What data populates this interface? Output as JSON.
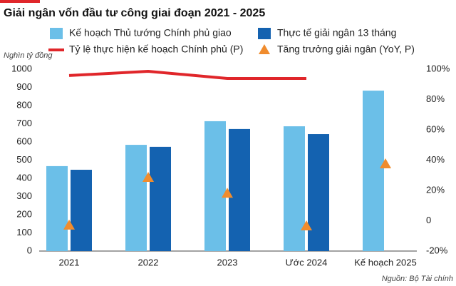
{
  "chart_data": {
    "type": "bar",
    "title": "Giải ngân vốn đầu tư công giai đoạn 2021 - 2025",
    "y_label": "Nghìn tỷ đồng",
    "source": "Nguồn: Bộ Tài chính",
    "categories": [
      "2021",
      "2022",
      "2023",
      "Ước 2024",
      "Kế hoạch 2025"
    ],
    "series": [
      {
        "name": "Kế hoạch Thủ tướng Chính phủ giao",
        "type": "bar",
        "color": "#6bbfe8",
        "values": [
          467,
          584,
          714,
          686,
          882
        ]
      },
      {
        "name": "Thực tế giải ngân 13 tháng",
        "type": "bar",
        "color": "#1462b0",
        "values": [
          447,
          573,
          671,
          643,
          null
        ]
      },
      {
        "name": "Tỷ lệ thực hiện kế hoạch Chính phủ (P)",
        "type": "line",
        "axis": "y2",
        "color": "#e0262a",
        "values": [
          95.8,
          98.6,
          93.9,
          93.9,
          null
        ]
      },
      {
        "name": "Tăng trưởng giải ngân (YoY, P)",
        "type": "scatter",
        "axis": "y2",
        "color": "#f08c2d",
        "values": [
          -3,
          28.5,
          18,
          -3.5,
          37.4
        ]
      }
    ],
    "ylim": [
      0,
      1000
    ],
    "yticks": [
      0,
      100,
      200,
      300,
      400,
      500,
      600,
      700,
      800,
      900,
      1000
    ],
    "y2lim": [
      -20,
      100
    ],
    "y2ticks": [
      {
        "value": -20,
        "label": "-20%"
      },
      {
        "value": 0,
        "label": "0"
      },
      {
        "value": 20,
        "label": "20%"
      },
      {
        "value": 40,
        "label": "40%"
      },
      {
        "value": 60,
        "label": "60%"
      },
      {
        "value": 80,
        "label": "80%"
      },
      {
        "value": 100,
        "label": "100%"
      }
    ]
  }
}
